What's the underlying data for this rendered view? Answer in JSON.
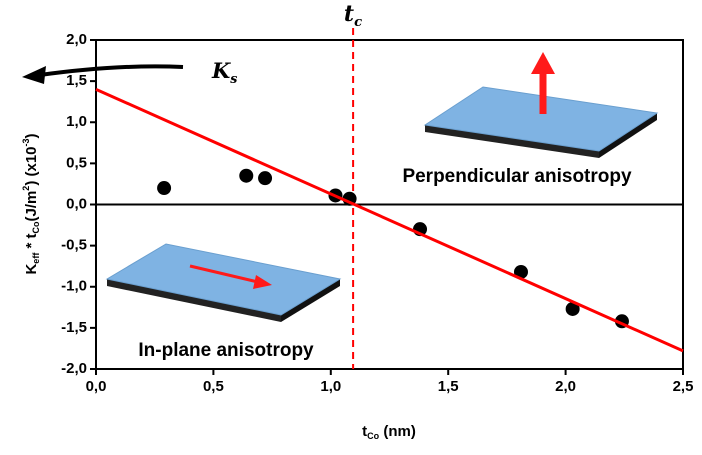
{
  "chart_data": {
    "type": "scatter",
    "xlabel": [
      "t",
      "Co",
      " (nm)"
    ],
    "ylabel": [
      "K",
      "eff",
      " * t",
      "Co",
      "(J/m",
      "2",
      ") (x10",
      "-3",
      ")"
    ],
    "xlim": [
      0,
      2.5
    ],
    "ylim": [
      -2,
      2
    ],
    "xticks": [
      {
        "value": 0,
        "label": "0,0"
      },
      {
        "value": 0.5,
        "label": "0,5"
      },
      {
        "value": 1,
        "label": "1,0"
      },
      {
        "value": 1.5,
        "label": "1,5"
      },
      {
        "value": 2,
        "label": "2,0"
      },
      {
        "value": 2.5,
        "label": "2,5"
      }
    ],
    "yticks": [
      {
        "value": -2,
        "label": "-2,0"
      },
      {
        "value": -1.5,
        "label": "-1,5"
      },
      {
        "value": -1,
        "label": "-1,0"
      },
      {
        "value": -0.5,
        "label": "-0,5"
      },
      {
        "value": 0,
        "label": "0,0"
      },
      {
        "value": 0.5,
        "label": "0,5"
      },
      {
        "value": 1,
        "label": "1,0"
      },
      {
        "value": 1.5,
        "label": "1,5"
      },
      {
        "value": 2,
        "label": "2,0"
      }
    ],
    "series": [
      {
        "color": "#000000",
        "x": [
          0.29,
          0.64,
          0.72,
          1.02,
          1.08,
          1.38,
          1.81,
          2.03,
          2.24
        ],
        "values": [
          0.2,
          0.35,
          0.32,
          0.11,
          0.07,
          -0.3,
          -0.82,
          -1.27,
          -1.42
        ]
      },
      {
        "color": "#ff0000",
        "style": "line",
        "x": [
          0,
          2.5
        ],
        "values": [
          1.4,
          -1.78
        ]
      }
    ],
    "hline": 0,
    "vline": 1.095,
    "vline_color": "#ff0000",
    "tc_label": [
      "t",
      "c"
    ],
    "ks_label": [
      "K",
      "s"
    ],
    "annotations": [
      "Perpendicular anisotropy",
      "In-plane anisotropy"
    ]
  }
}
